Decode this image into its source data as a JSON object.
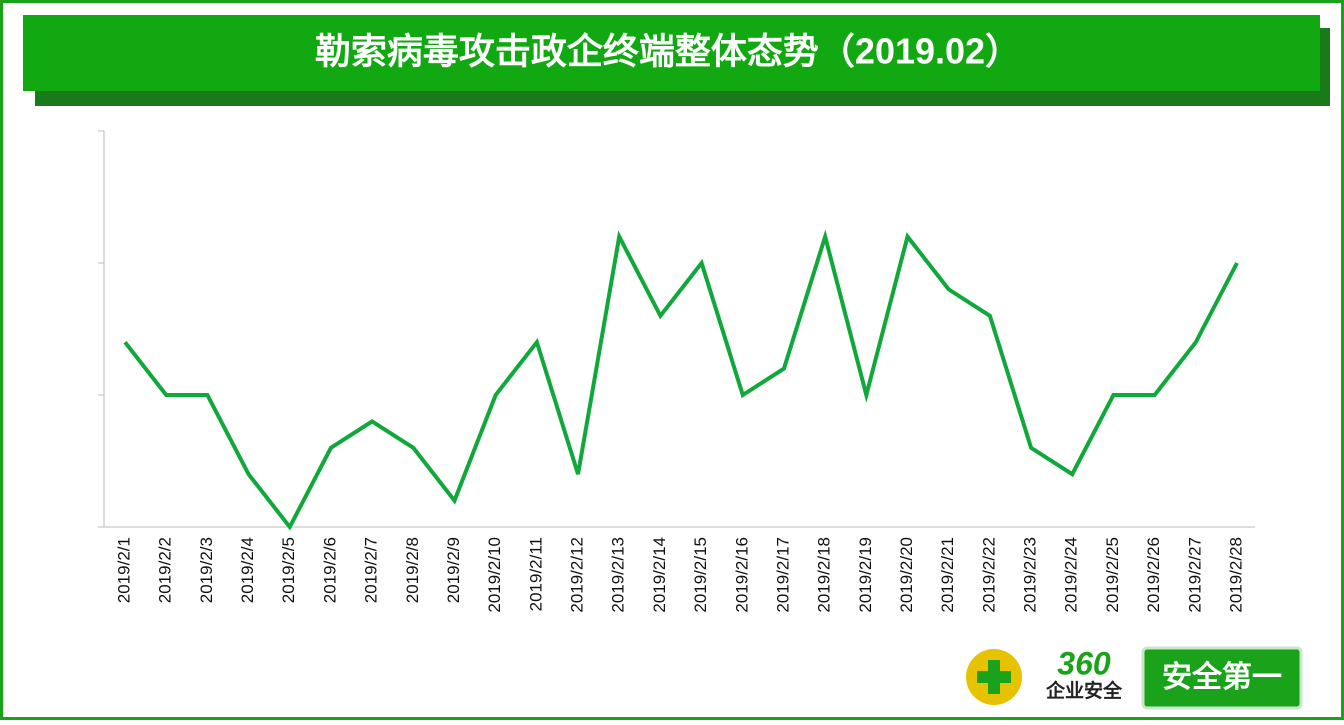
{
  "chart_data": {
    "type": "line",
    "title": "勒索病毒攻击政企终端整体态势（2019.02）",
    "categories": [
      "2019/2/1",
      "2019/2/2",
      "2019/2/3",
      "2019/2/4",
      "2019/2/5",
      "2019/2/6",
      "2019/2/7",
      "2019/2/8",
      "2019/2/9",
      "2019/2/10",
      "2019/2/11",
      "2019/2/12",
      "2019/2/13",
      "2019/2/14",
      "2019/2/15",
      "2019/2/16",
      "2019/2/17",
      "2019/2/18",
      "2019/2/19",
      "2019/2/20",
      "2019/2/21",
      "2019/2/22",
      "2019/2/23",
      "2019/2/24",
      "2019/2/25",
      "2019/2/26",
      "2019/2/27",
      "2019/2/28"
    ],
    "values": [
      7,
      5,
      5,
      2,
      0,
      3,
      4,
      3,
      1,
      5,
      7,
      2,
      11,
      8,
      10,
      5,
      6,
      11,
      5,
      11,
      9,
      8,
      3,
      2,
      5,
      5,
      7,
      10
    ],
    "color": "#10a83a",
    "ylim": [
      0,
      15
    ],
    "yticks": [
      0,
      5,
      10,
      15
    ]
  },
  "logo": {
    "number": "360",
    "subtitle": "企业安全",
    "badge": "安全第一"
  }
}
